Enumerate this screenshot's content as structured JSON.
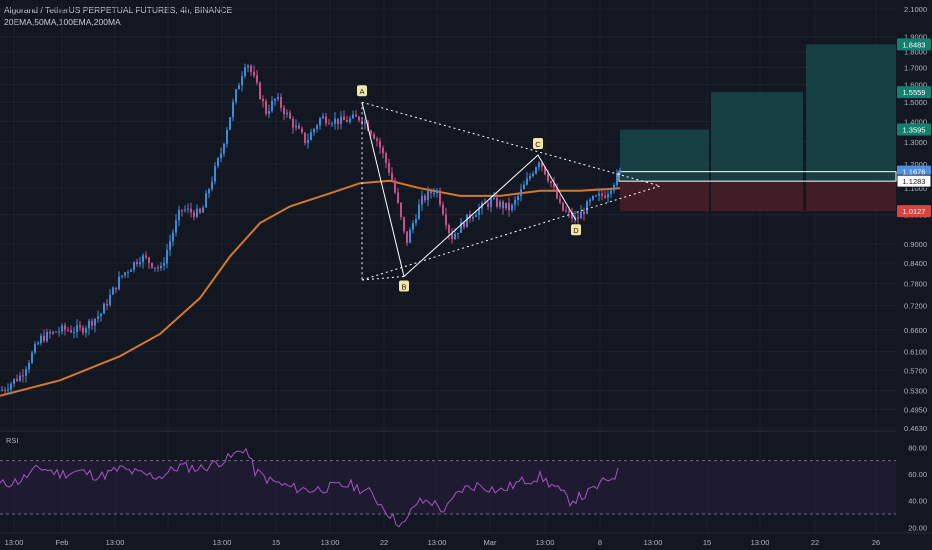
{
  "header": {
    "title": "Algorand / TetherUS PERPETUAL FUTURES, 4h, BINANCE",
    "indicators": "20EMA,50MA,100EMA,200MA"
  },
  "rsi_label": "RSI",
  "colors": {
    "background": "#131722",
    "bull": "#3d8bd8",
    "bear": "#c8508a",
    "ema": "#d4782a",
    "rsi": "#a855c7",
    "target": "#17464a",
    "stop": "#4a1f27",
    "tag_green": "#13806f",
    "tag_red": "#d8453e",
    "tag_blue": "#4e8fe6",
    "pattern": "#ffffff",
    "point_bg": "#f4e7a3"
  },
  "chart_data": [
    {
      "type": "candlestick",
      "title": "Algorand / TetherUS PERPETUAL FUTURES, 4h, BINANCE",
      "y_scale": "log",
      "y_ticks": [
        "2.1000",
        "1.9000",
        "1.8000",
        "1.7000",
        "1.6000",
        "1.5000",
        "1.4000",
        "1.3000",
        "1.2000",
        "1.1000",
        "1.0000",
        "0.9000",
        "0.8400",
        "0.7800",
        "0.7200",
        "0.6600",
        "0.6100",
        "0.5700",
        "0.5300",
        "0.4950",
        "0.4630"
      ],
      "x_ticks": [
        "13:00",
        "Feb",
        "13:00",
        "13:00",
        "15",
        "13:00",
        "22",
        "13:00",
        "Mar",
        "13:00",
        "8",
        "13:00",
        "15",
        "13:00",
        "22",
        "26"
      ],
      "price_tags": [
        {
          "value": "1.8483",
          "color": "green"
        },
        {
          "value": "1.5559",
          "color": "green"
        },
        {
          "value": "1.3595",
          "color": "green"
        },
        {
          "value": "1.1676",
          "color": "blue"
        },
        {
          "value": "1.1283",
          "color": "white"
        },
        {
          "value": "1.0127",
          "color": "red"
        }
      ],
      "pattern_points": [
        {
          "label": "A",
          "value": 1.5
        },
        {
          "label": "B",
          "value": 0.8
        },
        {
          "label": "C",
          "value": 1.24
        },
        {
          "label": "D",
          "value": 0.98
        }
      ],
      "targets": [
        1.3595,
        1.5559,
        1.8483
      ],
      "stop": 1.0127,
      "entry": 1.1283,
      "last": 1.1676,
      "ema_path": [
        [
          0,
          0.52
        ],
        [
          60,
          0.55
        ],
        [
          120,
          0.6
        ],
        [
          160,
          0.65
        ],
        [
          200,
          0.74
        ],
        [
          230,
          0.86
        ],
        [
          260,
          0.97
        ],
        [
          290,
          1.03
        ],
        [
          330,
          1.08
        ],
        [
          360,
          1.12
        ],
        [
          390,
          1.13
        ],
        [
          420,
          1.1
        ],
        [
          460,
          1.07
        ],
        [
          500,
          1.07
        ],
        [
          540,
          1.09
        ],
        [
          580,
          1.09
        ],
        [
          620,
          1.1
        ]
      ],
      "price_path": [
        [
          0,
          0.53
        ],
        [
          20,
          0.56
        ],
        [
          40,
          0.64
        ],
        [
          60,
          0.66
        ],
        [
          80,
          0.66
        ],
        [
          100,
          0.7
        ],
        [
          120,
          0.8
        ],
        [
          140,
          0.86
        ],
        [
          160,
          0.82
        ],
        [
          180,
          1.02
        ],
        [
          200,
          1.0
        ],
        [
          220,
          1.25
        ],
        [
          235,
          1.55
        ],
        [
          245,
          1.75
        ],
        [
          255,
          1.6
        ],
        [
          265,
          1.45
        ],
        [
          275,
          1.52
        ],
        [
          290,
          1.4
        ],
        [
          305,
          1.3
        ],
        [
          320,
          1.42
        ],
        [
          340,
          1.4
        ],
        [
          360,
          1.42
        ],
        [
          375,
          1.32
        ],
        [
          390,
          1.15
        ],
        [
          405,
          0.9
        ],
        [
          420,
          1.05
        ],
        [
          435,
          1.1
        ],
        [
          450,
          0.92
        ],
        [
          470,
          1.0
        ],
        [
          490,
          1.05
        ],
        [
          510,
          1.02
        ],
        [
          525,
          1.12
        ],
        [
          538,
          1.22
        ],
        [
          550,
          1.12
        ],
        [
          560,
          1.02
        ],
        [
          575,
          0.98
        ],
        [
          590,
          1.05
        ],
        [
          605,
          1.08
        ],
        [
          620,
          1.17
        ]
      ]
    },
    {
      "type": "line",
      "title": "RSI",
      "y_ticks": [
        "80.00",
        "60.00",
        "40.00",
        "20.00"
      ],
      "bands": [
        70,
        30
      ],
      "ylim": [
        15,
        90
      ],
      "rsi_path": [
        [
          0,
          52
        ],
        [
          20,
          55
        ],
        [
          40,
          65
        ],
        [
          60,
          60
        ],
        [
          80,
          62
        ],
        [
          100,
          58
        ],
        [
          120,
          64
        ],
        [
          140,
          60
        ],
        [
          160,
          58
        ],
        [
          180,
          66
        ],
        [
          200,
          64
        ],
        [
          215,
          68
        ],
        [
          230,
          72
        ],
        [
          245,
          80
        ],
        [
          255,
          62
        ],
        [
          270,
          55
        ],
        [
          290,
          50
        ],
        [
          310,
          48
        ],
        [
          330,
          50
        ],
        [
          350,
          52
        ],
        [
          370,
          46
        ],
        [
          385,
          34
        ],
        [
          395,
          25
        ],
        [
          405,
          22
        ],
        [
          415,
          38
        ],
        [
          430,
          40
        ],
        [
          445,
          32
        ],
        [
          460,
          48
        ],
        [
          480,
          52
        ],
        [
          500,
          47
        ],
        [
          520,
          54
        ],
        [
          540,
          58
        ],
        [
          555,
          50
        ],
        [
          570,
          40
        ],
        [
          585,
          44
        ],
        [
          600,
          52
        ],
        [
          620,
          62
        ]
      ]
    }
  ]
}
